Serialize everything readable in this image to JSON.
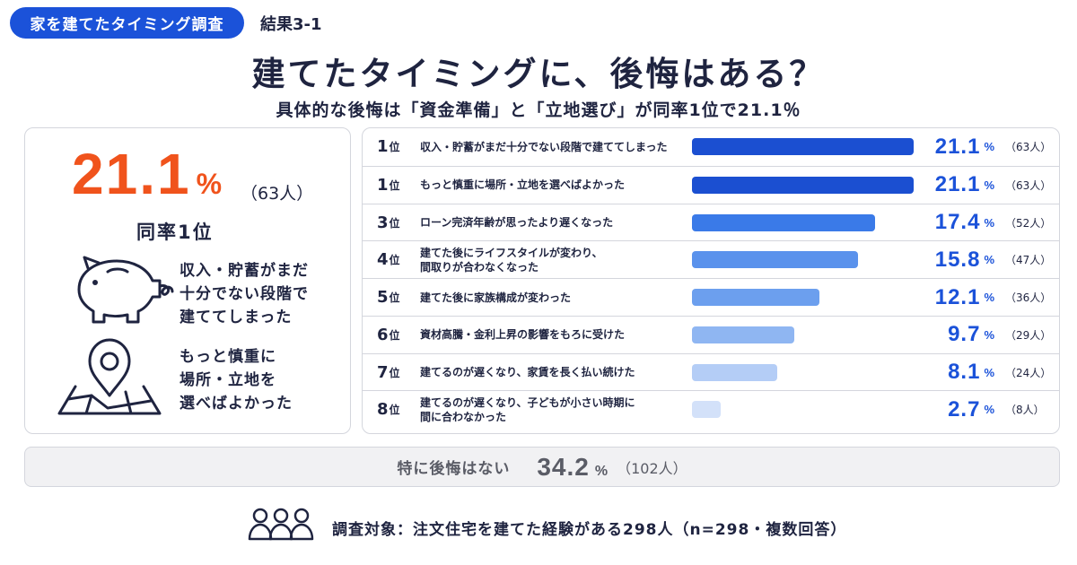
{
  "header": {
    "tag": "家を建てたタイミング調査",
    "result_label": "結果3-1",
    "title": "建てたタイミングに、後悔はある？",
    "subtitle": "具体的な後悔は「資金準備」と「立地選び」が同率1位で21.1％"
  },
  "highlight": {
    "value": "21.1",
    "unit": "%",
    "count": "（63人）",
    "rank_label": "同率1位",
    "reasons": [
      {
        "icon": "piggy-bank-icon",
        "lines": [
          "収入・貯蓄がまだ",
          "十分でない段階で",
          "建ててしまった"
        ]
      },
      {
        "icon": "map-pin-icon",
        "lines": [
          "もっと慎重に",
          "場所・立地を",
          "選べばよかった"
        ]
      }
    ]
  },
  "chart_data": {
    "type": "bar",
    "orientation": "horizontal",
    "unit": "%",
    "rows": [
      {
        "rank": "1",
        "rank_suffix": "位",
        "lines": [
          "収入・貯蓄がまだ十分でない段階で建ててしまった"
        ],
        "value": 21.1,
        "value_label": "21.1",
        "count": "（63人）",
        "color": "#1b4fd1"
      },
      {
        "rank": "1",
        "rank_suffix": "位",
        "lines": [
          "もっと慎重に場所・立地を選べばよかった"
        ],
        "value": 21.1,
        "value_label": "21.1",
        "count": "（63人）",
        "color": "#1b4fd1"
      },
      {
        "rank": "3",
        "rank_suffix": "位",
        "lines": [
          "ローン完済年齢が思ったより遅くなった"
        ],
        "value": 17.4,
        "value_label": "17.4",
        "count": "（52人）",
        "color": "#3a7ae8"
      },
      {
        "rank": "4",
        "rank_suffix": "位",
        "lines": [
          "建てた後にライフスタイルが変わり、",
          "間取りが合わなくなった"
        ],
        "value": 15.8,
        "value_label": "15.8",
        "count": "（47人）",
        "color": "#5a92ec"
      },
      {
        "rank": "5",
        "rank_suffix": "位",
        "lines": [
          "建てた後に家族構成が変わった"
        ],
        "value": 12.1,
        "value_label": "12.1",
        "count": "（36人）",
        "color": "#6c9fee"
      },
      {
        "rank": "6",
        "rank_suffix": "位",
        "lines": [
          "資材高騰・金利上昇の影響をもろに受けた"
        ],
        "value": 9.7,
        "value_label": "9.7",
        "count": "（29人）",
        "color": "#8fb6f2"
      },
      {
        "rank": "7",
        "rank_suffix": "位",
        "lines": [
          "建てるのが遅くなり、家賃を長く払い続けた"
        ],
        "value": 8.1,
        "value_label": "8.1",
        "count": "（24人）",
        "color": "#b4cdf6"
      },
      {
        "rank": "8",
        "rank_suffix": "位",
        "lines": [
          "建てるのが遅くなり、子どもが小さい時期に",
          "間に合わなかった"
        ],
        "value": 2.7,
        "value_label": "2.7",
        "count": "（8人）",
        "color": "#d3e1f9"
      }
    ],
    "xlim": [
      0,
      21.1
    ]
  },
  "no_regret": {
    "label": "特に後悔はない",
    "value": "34.2",
    "unit": "%",
    "count": "（102人）"
  },
  "footer": {
    "icon": "people-icon",
    "text": "調査対象：注文住宅を建てた経験がある298人（n=298・複数回答）"
  }
}
